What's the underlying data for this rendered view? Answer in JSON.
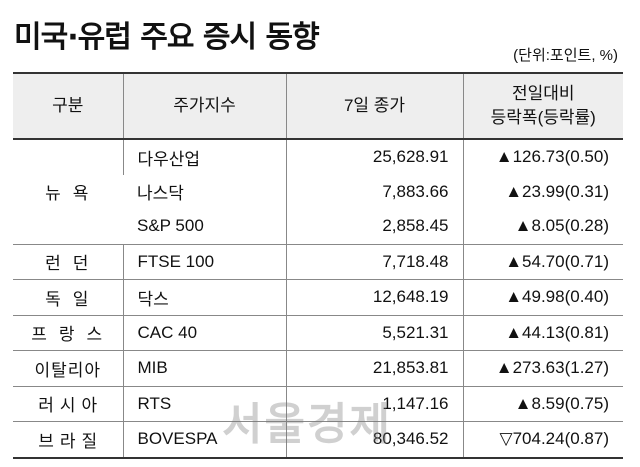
{
  "title": "미국·유럽 주요 증시 동향",
  "unit": "(단위:포인트, %)",
  "headers": [
    "구분",
    "주가지수",
    "7일 종가",
    "전일대비",
    "등락폭(등락률)"
  ],
  "groups": {
    "ny": "뉴욕",
    "london": "런던",
    "germany": "독일",
    "france": "프랑스",
    "italy": "이탈리아",
    "russia": "러시아",
    "brazil": "브라질"
  },
  "rows": [
    {
      "index": "다우산업",
      "close": "25,628.91",
      "change": "▲126.73(0.50)"
    },
    {
      "index": "나스닥",
      "close": "7,883.66",
      "change": "▲23.99(0.31)"
    },
    {
      "index": "S&P 500",
      "close": "2,858.45",
      "change": "▲8.05(0.28)"
    },
    {
      "index": "FTSE 100",
      "close": "7,718.48",
      "change": "▲54.70(0.71)"
    },
    {
      "index": "닥스",
      "close": "12,648.19",
      "change": "▲49.98(0.40)"
    },
    {
      "index": "CAC 40",
      "close": "5,521.31",
      "change": "▲44.13(0.81)"
    },
    {
      "index": "MIB",
      "close": "21,853.81",
      "change": "▲273.63(1.27)"
    },
    {
      "index": "RTS",
      "close": "1,147.16",
      "change": "▲8.59(0.75)"
    },
    {
      "index": "BOVESPA",
      "close": "80,346.52",
      "change": "▽704.24(0.87)"
    }
  ],
  "watermark": "서울경제"
}
